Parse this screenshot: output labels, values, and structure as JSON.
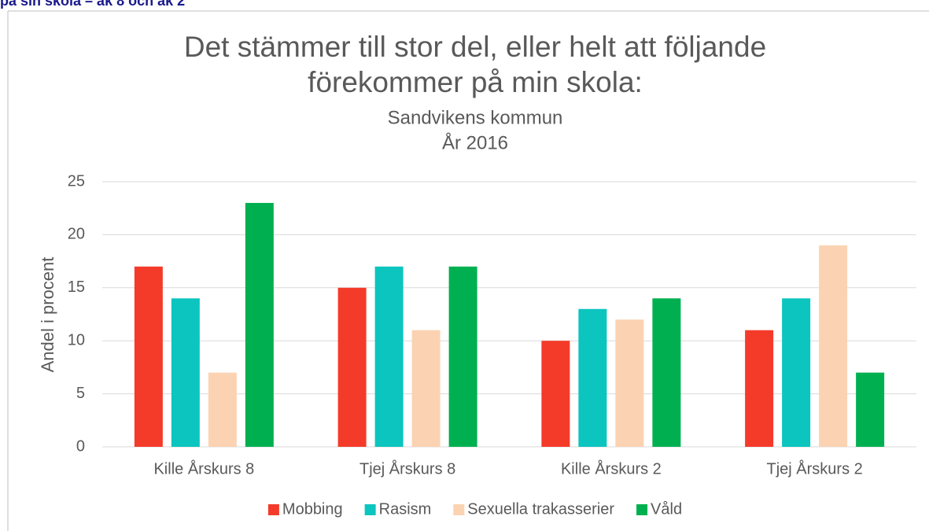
{
  "header": "på sin skola – åk 8 och åk 2",
  "chart_data": {
    "type": "bar",
    "title": [
      "Det stämmer till stor del, eller helt att följande",
      "förekommer på min skola:"
    ],
    "subtitle": [
      "Sandvikens kommun",
      "År 2016"
    ],
    "ylabel": "Andel i procent",
    "categories": [
      "Kille Årskurs 8",
      "Tjej Årskurs 8",
      "Kille Årskurs 2",
      "Tjej Årskurs 2"
    ],
    "series": [
      {
        "name": "Mobbing",
        "color": "#f43b2a",
        "values": [
          17,
          15,
          10,
          11
        ]
      },
      {
        "name": "Rasism",
        "color": "#0cc5bf",
        "values": [
          14,
          17,
          13,
          14
        ]
      },
      {
        "name": "Sexuella trakasserier",
        "color": "#fbd3b2",
        "values": [
          7,
          11,
          12,
          19
        ]
      },
      {
        "name": "Våld",
        "color": "#00b050",
        "values": [
          23,
          17,
          14,
          7
        ]
      }
    ],
    "ylim": [
      0,
      25
    ],
    "yticks": [
      0,
      5,
      10,
      15,
      20,
      25
    ],
    "grid": true,
    "legend": "bottom"
  }
}
